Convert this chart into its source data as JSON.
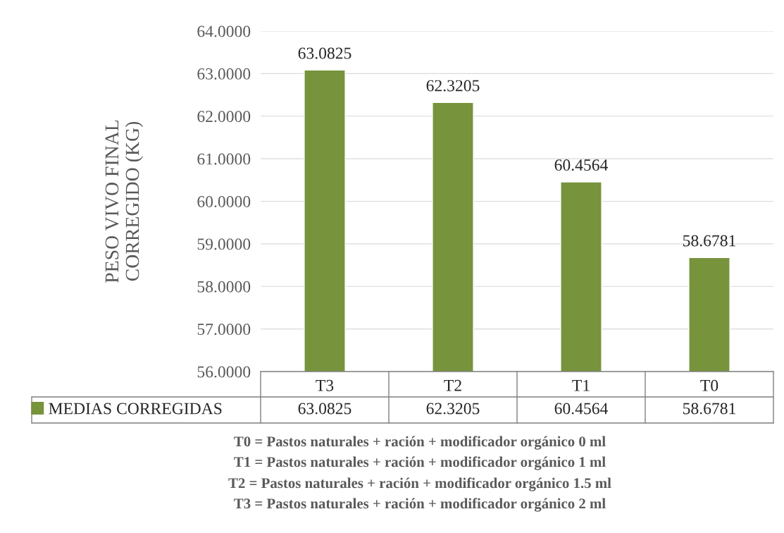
{
  "chart_data": {
    "type": "bar",
    "ylabel": "PESO VIVO FINAL\nCORREGIDO (KG)",
    "categories": [
      "T3",
      "T2",
      "T1",
      "T0"
    ],
    "series": [
      {
        "name": "MEDIAS CORREGIDAS",
        "color": "#77933c",
        "values": [
          63.0825,
          62.3205,
          60.4564,
          58.6781
        ],
        "value_labels": [
          "63.0825",
          "62.3205",
          "60.4564",
          "58.6781"
        ]
      }
    ],
    "ylim": [
      56,
      64
    ],
    "yticks": [
      {
        "value": 56,
        "label": "56.0000"
      },
      {
        "value": 57,
        "label": "57.0000"
      },
      {
        "value": 58,
        "label": "58.0000"
      },
      {
        "value": 59,
        "label": "59.0000"
      },
      {
        "value": 60,
        "label": "60.0000"
      },
      {
        "value": 61,
        "label": "61.0000"
      },
      {
        "value": 62,
        "label": "62.0000"
      },
      {
        "value": 63,
        "label": "63.0000"
      },
      {
        "value": 64,
        "label": "64.0000"
      }
    ],
    "grid": "y",
    "legend": "bottom left",
    "data_labels": true,
    "annotations": [
      "63.0825",
      "62.3205",
      "60.4564",
      "58.6781",
      "T0 = Pastos naturales + ración + modificador orgánico 0 ml",
      "T1 = Pastos naturales + ración + modificador orgánico 1 ml",
      "T2 = Pastos naturales + ración + modificador orgánico 1.5 ml",
      "T3 = Pastos naturales + ración + modificador orgánico 2 ml"
    ]
  }
}
